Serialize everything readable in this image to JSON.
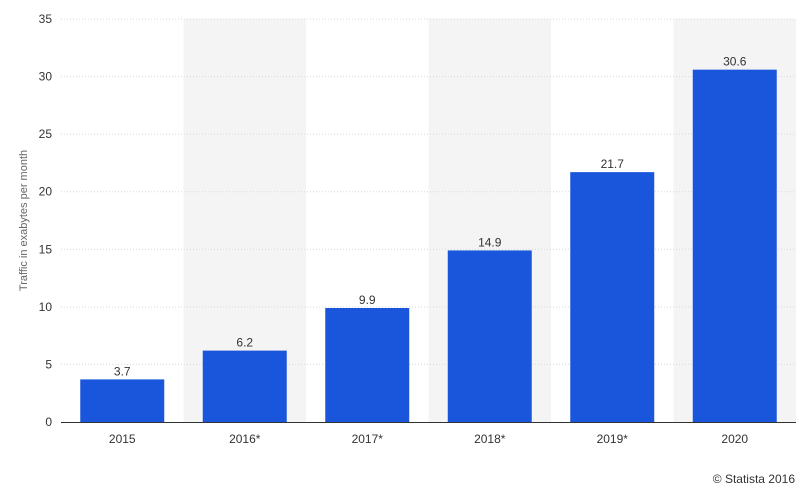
{
  "chart_data": {
    "type": "bar",
    "categories": [
      "2015",
      "2016*",
      "2017*",
      "2018*",
      "2019*",
      "2020"
    ],
    "values": [
      3.7,
      6.2,
      9.9,
      14.9,
      21.7,
      30.6
    ],
    "value_labels": [
      "3.7",
      "6.2",
      "9.9",
      "14.9",
      "21.7",
      "30.6"
    ],
    "title": "",
    "xlabel": "",
    "ylabel": "Traffic in exabytes per month",
    "ylim": [
      0,
      35
    ],
    "yticks": [
      0,
      5,
      10,
      15,
      20,
      25,
      30,
      35
    ],
    "grid": true,
    "bar_color": "#1a56db",
    "band_color": "#f4f4f4",
    "grid_color": "#d8d8d8"
  },
  "credit": "© Statista 2016"
}
